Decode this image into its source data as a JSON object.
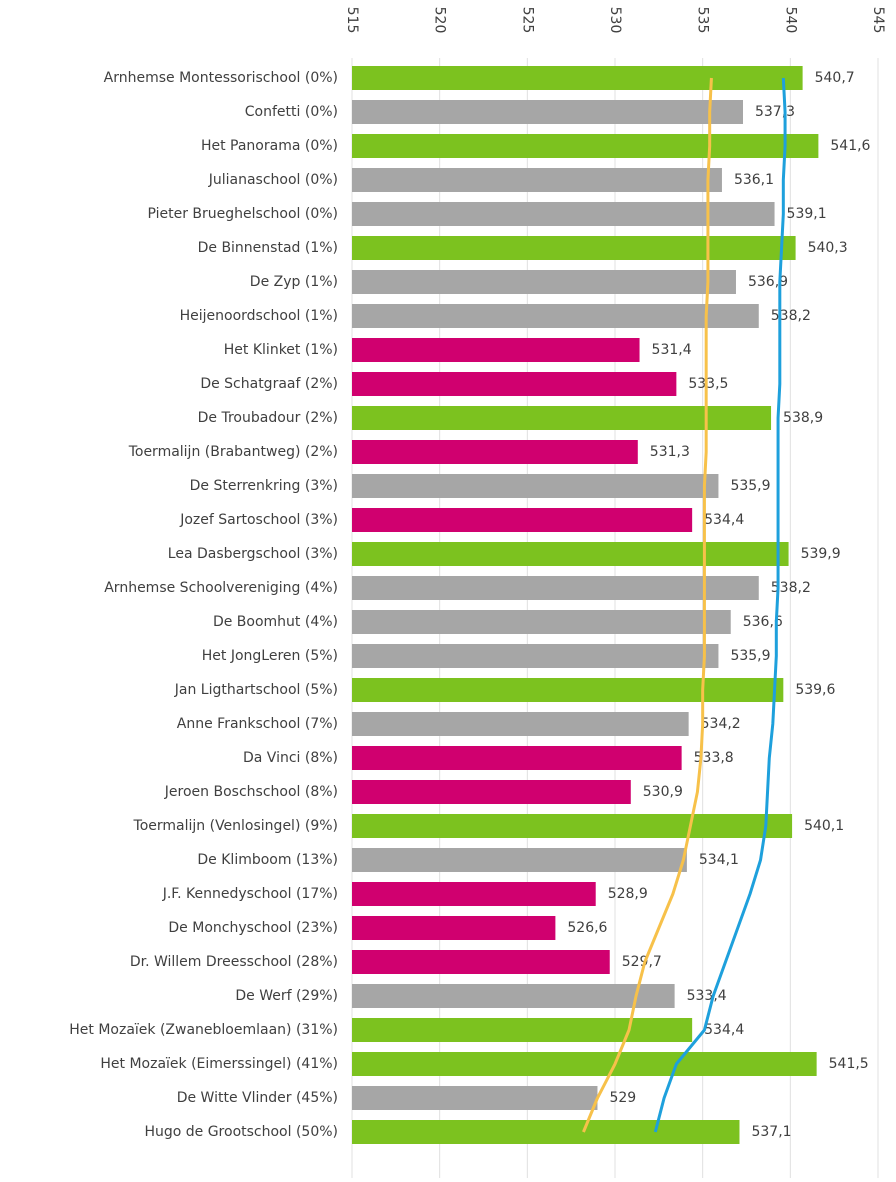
{
  "chart_data": {
    "type": "bar",
    "orientation": "horizontal",
    "categories": [
      "Arnhemse Montessorischool (0%)",
      "Confetti (0%)",
      "Het Panorama (0%)",
      "Julianaschool (0%)",
      "Pieter Brueghelschool (0%)",
      "De Binnenstad (1%)",
      "De Zyp (1%)",
      "Heijenoordschool (1%)",
      "Het Klinket (1%)",
      "De Schatgraaf (2%)",
      "De Troubadour (2%)",
      "Toermalijn (Brabantweg) (2%)",
      "De Sterrenkring (3%)",
      "Jozef Sartoschool (3%)",
      "Lea Dasbergschool (3%)",
      "Arnhemse Schoolvereniging (4%)",
      "De Boomhut (4%)",
      "Het JongLeren (5%)",
      "Jan Ligthartschool (5%)",
      "Anne Frankschool (7%)",
      "Da Vinci (8%)",
      "Jeroen Boschschool (8%)",
      "Toermalijn (Venlosingel) (9%)",
      "De Klimboom (13%)",
      "J.F. Kennedyschool (17%)",
      "De Monchyschool (23%)",
      "Dr. Willem Dreesschool (28%)",
      "De Werf (29%)",
      "Het Mozaïek (Zwanebloemlaan) (31%)",
      "Het Mozaïek (Eimerssingel) (41%)",
      "De Witte Vlinder (45%)",
      "Hugo de Grootschool (50%)"
    ],
    "values": [
      540.7,
      537.3,
      541.6,
      536.1,
      539.1,
      540.3,
      536.9,
      538.2,
      531.4,
      533.5,
      538.9,
      531.3,
      535.9,
      534.4,
      539.9,
      538.2,
      536.6,
      535.9,
      539.6,
      534.2,
      533.8,
      530.9,
      540.1,
      534.1,
      528.9,
      526.6,
      529.7,
      533.4,
      534.4,
      541.5,
      529,
      537.1
    ],
    "value_labels": [
      "540,7",
      "537,3",
      "541,6",
      "536,1",
      "539,1",
      "540,3",
      "536,9",
      "538,2",
      "531,4",
      "533,5",
      "538,9",
      "531,3",
      "535,9",
      "534,4",
      "539,9",
      "538,2",
      "536,6",
      "535,9",
      "539,6",
      "534,2",
      "533,8",
      "530,9",
      "540,1",
      "534,1",
      "528,9",
      "526,6",
      "529,7",
      "533,4",
      "534,4",
      "541,5",
      "529",
      "537,1"
    ],
    "colors": [
      "#7cc21f",
      "#a6a6a6",
      "#7cc21f",
      "#a6a6a6",
      "#a6a6a6",
      "#7cc21f",
      "#a6a6a6",
      "#a6a6a6",
      "#d0006f",
      "#d0006f",
      "#7cc21f",
      "#d0006f",
      "#a6a6a6",
      "#d0006f",
      "#7cc21f",
      "#a6a6a6",
      "#a6a6a6",
      "#a6a6a6",
      "#7cc21f",
      "#a6a6a6",
      "#d0006f",
      "#d0006f",
      "#7cc21f",
      "#a6a6a6",
      "#d0006f",
      "#d0006f",
      "#d0006f",
      "#a6a6a6",
      "#7cc21f",
      "#7cc21f",
      "#a6a6a6",
      "#7cc21f"
    ],
    "lines": [
      {
        "color": "#f7c14a",
        "values": [
          535.5,
          535.4,
          535.4,
          535.3,
          535.3,
          535.3,
          535.3,
          535.2,
          535.2,
          535.2,
          535.2,
          535.2,
          535.1,
          535.1,
          535.1,
          535.1,
          535.1,
          535.1,
          535.0,
          535.0,
          534.9,
          534.7,
          534.3,
          533.9,
          533.3,
          532.5,
          531.7,
          531.2,
          530.8,
          530.0,
          529.0,
          528.2
        ]
      },
      {
        "color": "#1ea0dc",
        "values": [
          539.6,
          539.7,
          539.7,
          539.6,
          539.6,
          539.5,
          539.4,
          539.4,
          539.4,
          539.4,
          539.3,
          539.3,
          539.3,
          539.3,
          539.3,
          539.3,
          539.2,
          539.2,
          539.1,
          539.0,
          538.8,
          538.7,
          538.6,
          538.3,
          537.7,
          537.0,
          536.3,
          535.6,
          535.1,
          533.5,
          532.8,
          532.3
        ]
      }
    ],
    "xlim": [
      515,
      545
    ],
    "xticks": [
      515,
      520,
      525,
      530,
      535,
      540,
      545
    ],
    "grid": true
  }
}
